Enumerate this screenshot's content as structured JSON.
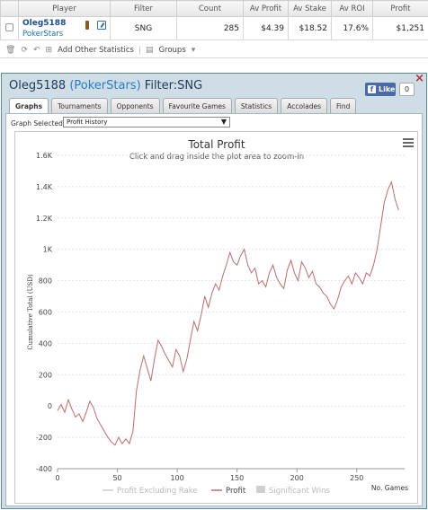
{
  "table": {
    "headers": [
      "",
      "Player",
      "Filter",
      "Count",
      "Av Profit",
      "Av Stake",
      "Av ROI",
      "Profit"
    ],
    "row": {
      "player_name": "Oleg5188",
      "player_site": "PokerStars",
      "filter": "SNG",
      "count": "285",
      "av_profit": "$4.39",
      "av_stake": "$18.52",
      "av_roi": "17.6%",
      "profit": "$1,251"
    }
  },
  "toolbar": {
    "add_stats_label": "Add Other Statistics",
    "groups_label": "Groups"
  },
  "panel": {
    "player": "Oleg5188",
    "site": "(PokerStars)",
    "filter_text": "Filter:SNG",
    "like_label": "Like",
    "like_count": "0",
    "close_symbol": "×"
  },
  "tabs": [
    {
      "label": "Graphs",
      "active": true
    },
    {
      "label": "Tournaments",
      "active": false
    },
    {
      "label": "Opponents",
      "active": false
    },
    {
      "label": "Favourite Games",
      "active": false
    },
    {
      "label": "Statistics",
      "active": false
    },
    {
      "label": "Accolades",
      "active": false
    },
    {
      "label": "Find",
      "active": false
    }
  ],
  "graph_select": {
    "label": "Graph Selected:",
    "value": "Profit History"
  },
  "colors": {
    "profit_line": "#b86e6e",
    "excl_rake_legend": "#cccccc",
    "sig_wins_legend": "#cfcfcf",
    "panel_bg": "#cfdde6",
    "accent": "#2a7ec2"
  },
  "chart_data": {
    "type": "line",
    "title": "Total Profit",
    "subtitle": "Click and drag inside the plot area to zoom-in",
    "xlabel": "No. Games",
    "ylabel": "Cumulative Total (USD)",
    "xlim": [
      0,
      290
    ],
    "ylim": [
      -400,
      1600
    ],
    "x_ticks": [
      0,
      50,
      100,
      150,
      200,
      250
    ],
    "y_ticks": [
      -400,
      -200,
      0,
      200,
      400,
      600,
      800,
      1000,
      1200,
      1400,
      1600
    ],
    "y_tick_labels": [
      "-400",
      "-200",
      "0",
      "200",
      "400",
      "600",
      "800",
      "1K",
      "1.2K",
      "1.4K",
      "1.6K"
    ],
    "grid": true,
    "legend_position": "bottom",
    "legend": [
      "Profit Excluding Rake",
      "Profit",
      "Significant Wins"
    ],
    "series": [
      {
        "name": "Profit",
        "x": [
          0,
          3,
          6,
          9,
          12,
          15,
          18,
          21,
          24,
          27,
          30,
          33,
          36,
          39,
          42,
          45,
          48,
          51,
          54,
          57,
          60,
          63,
          66,
          69,
          72,
          75,
          78,
          81,
          84,
          87,
          90,
          93,
          96,
          99,
          102,
          105,
          108,
          111,
          114,
          117,
          120,
          123,
          126,
          129,
          132,
          135,
          138,
          141,
          144,
          147,
          150,
          153,
          156,
          159,
          162,
          165,
          168,
          171,
          174,
          177,
          180,
          183,
          186,
          189,
          192,
          195,
          198,
          201,
          204,
          207,
          210,
          213,
          216,
          219,
          222,
          225,
          228,
          231,
          234,
          237,
          240,
          243,
          246,
          249,
          252,
          255,
          258,
          261,
          264,
          267,
          270,
          273,
          276,
          279,
          282,
          285
        ],
        "values": [
          -30,
          10,
          -40,
          40,
          -20,
          -70,
          -50,
          -100,
          -40,
          30,
          -10,
          -80,
          -120,
          -160,
          -200,
          -230,
          -250,
          -200,
          -240,
          -210,
          -240,
          -160,
          100,
          230,
          320,
          240,
          160,
          300,
          420,
          380,
          330,
          290,
          250,
          360,
          320,
          220,
          300,
          420,
          540,
          480,
          580,
          700,
          630,
          720,
          780,
          740,
          830,
          900,
          980,
          920,
          900,
          960,
          1000,
          900,
          850,
          880,
          780,
          800,
          760,
          850,
          900,
          820,
          780,
          750,
          870,
          930,
          850,
          800,
          920,
          880,
          820,
          860,
          780,
          760,
          720,
          700,
          650,
          620,
          680,
          760,
          800,
          830,
          780,
          850,
          820,
          780,
          850,
          830,
          900,
          1000,
          1150,
          1300,
          1380,
          1430,
          1320,
          1250
        ]
      }
    ]
  }
}
